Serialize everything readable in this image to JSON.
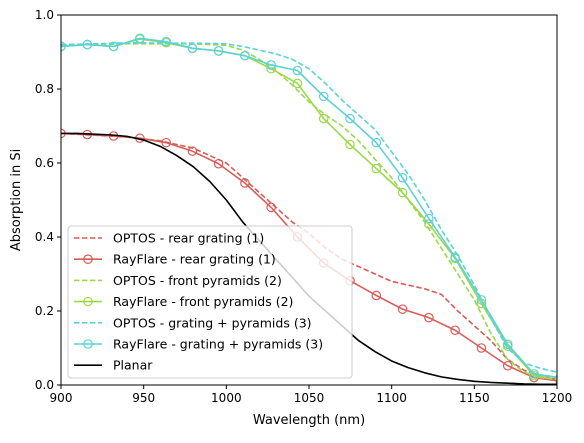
{
  "chart_data": {
    "type": "line",
    "title": "",
    "xlabel": "Wavelength (nm)",
    "ylabel": "Absorption in Si",
    "xlim": [
      900,
      1200
    ],
    "ylim": [
      0,
      1
    ],
    "xticks": [
      "900",
      "950",
      "1000",
      "1050",
      "1100",
      "1150",
      "1200"
    ],
    "yticks": [
      "0.0",
      "0.2",
      "0.4",
      "0.6",
      "0.8",
      "1.0"
    ],
    "grid": false,
    "legend_position": "lower-left",
    "series": [
      {
        "name": "OPTOS - rear grating (1)",
        "color": "#dc5b57",
        "style": "dashed",
        "marker": false,
        "x": [
          900,
          920,
          940,
          960,
          980,
          1000,
          1010,
          1020,
          1030,
          1040,
          1050,
          1060,
          1070,
          1080,
          1090,
          1100,
          1110,
          1120,
          1130,
          1140,
          1150,
          1160,
          1170,
          1180,
          1190,
          1200
        ],
        "y": [
          0.68,
          0.675,
          0.67,
          0.66,
          0.64,
          0.6,
          0.56,
          0.52,
          0.48,
          0.44,
          0.41,
          0.37,
          0.34,
          0.32,
          0.3,
          0.28,
          0.27,
          0.26,
          0.245,
          0.2,
          0.16,
          0.12,
          0.07,
          0.04,
          0.025,
          0.015
        ]
      },
      {
        "name": "RayFlare - rear grating (1)",
        "color": "#dc5b57",
        "style": "solid",
        "marker": true,
        "x": [
          900,
          915.9,
          931.8,
          947.7,
          963.6,
          979.5,
          995.3,
          1011.2,
          1027.1,
          1043,
          1058.9,
          1074.8,
          1090.7,
          1106.6,
          1122.5,
          1138.4,
          1154.3,
          1170.2,
          1186.1,
          1202
        ],
        "y": [
          0.68,
          0.677,
          0.673,
          0.667,
          0.655,
          0.632,
          0.598,
          0.546,
          0.48,
          0.4,
          0.33,
          0.282,
          0.242,
          0.205,
          0.182,
          0.148,
          0.1,
          0.052,
          0.02,
          0.01
        ]
      },
      {
        "name": "OPTOS - front pyramids (2)",
        "color": "#9ad948",
        "style": "dashed",
        "marker": false,
        "x": [
          900,
          920,
          940,
          960,
          980,
          1000,
          1010,
          1020,
          1030,
          1040,
          1050,
          1060,
          1070,
          1080,
          1090,
          1100,
          1110,
          1120,
          1130,
          1140,
          1150,
          1160,
          1170,
          1180,
          1190,
          1200
        ],
        "y": [
          0.92,
          0.92,
          0.922,
          0.922,
          0.922,
          0.918,
          0.905,
          0.88,
          0.85,
          0.81,
          0.765,
          0.73,
          0.7,
          0.66,
          0.61,
          0.56,
          0.5,
          0.44,
          0.37,
          0.3,
          0.23,
          0.14,
          0.07,
          0.035,
          0.02,
          0.015
        ]
      },
      {
        "name": "RayFlare - front pyramids (2)",
        "color": "#9ad948",
        "style": "solid",
        "marker": true,
        "x": [
          900,
          915.9,
          931.8,
          947.7,
          963.6,
          979.5,
          995.3,
          1011.2,
          1027.1,
          1043,
          1058.9,
          1074.8,
          1090.7,
          1106.6,
          1122.5,
          1138.4,
          1154.3,
          1170.2,
          1186.1,
          1202
        ],
        "y": [
          0.915,
          0.92,
          0.915,
          0.935,
          0.925,
          0.91,
          0.903,
          0.89,
          0.855,
          0.815,
          0.72,
          0.65,
          0.585,
          0.52,
          0.435,
          0.342,
          0.22,
          0.105,
          0.025,
          0.02
        ]
      },
      {
        "name": "OPTOS - grating + pyramids (3)",
        "color": "#5bd2d9",
        "style": "dashed",
        "marker": false,
        "x": [
          900,
          920,
          940,
          960,
          980,
          1000,
          1010,
          1020,
          1030,
          1040,
          1050,
          1060,
          1070,
          1080,
          1090,
          1100,
          1110,
          1120,
          1130,
          1140,
          1150,
          1160,
          1170,
          1180,
          1190,
          1200
        ],
        "y": [
          0.92,
          0.922,
          0.925,
          0.924,
          0.924,
          0.922,
          0.915,
          0.905,
          0.895,
          0.88,
          0.855,
          0.815,
          0.77,
          0.73,
          0.69,
          0.63,
          0.57,
          0.5,
          0.42,
          0.35,
          0.27,
          0.18,
          0.1,
          0.06,
          0.045,
          0.035
        ]
      },
      {
        "name": "RayFlare - grating + pyramids (3)",
        "color": "#5bd2d9",
        "style": "solid",
        "marker": true,
        "x": [
          900,
          915.9,
          931.8,
          947.7,
          963.6,
          979.5,
          995.3,
          1011.2,
          1027.1,
          1043,
          1058.9,
          1074.8,
          1090.7,
          1106.6,
          1122.5,
          1138.4,
          1154.3,
          1170.2,
          1186.1,
          1202
        ],
        "y": [
          0.915,
          0.92,
          0.915,
          0.937,
          0.928,
          0.91,
          0.903,
          0.89,
          0.865,
          0.85,
          0.78,
          0.72,
          0.655,
          0.56,
          0.45,
          0.345,
          0.23,
          0.11,
          0.03,
          0.02
        ]
      },
      {
        "name": "Planar",
        "color": "#000000",
        "style": "solid",
        "marker": false,
        "x": [
          900,
          910,
          920,
          930,
          940,
          950,
          960,
          970,
          980,
          990,
          1000,
          1010,
          1020,
          1030,
          1040,
          1050,
          1060,
          1070,
          1080,
          1090,
          1100,
          1110,
          1120,
          1130,
          1140,
          1150,
          1160,
          1170,
          1180,
          1190,
          1200
        ],
        "y": [
          0.68,
          0.68,
          0.678,
          0.676,
          0.672,
          0.662,
          0.645,
          0.62,
          0.59,
          0.55,
          0.5,
          0.44,
          0.39,
          0.34,
          0.29,
          0.24,
          0.2,
          0.16,
          0.12,
          0.09,
          0.065,
          0.047,
          0.033,
          0.022,
          0.015,
          0.01,
          0.007,
          0.005,
          0.003,
          0.002,
          0.002
        ]
      }
    ]
  }
}
